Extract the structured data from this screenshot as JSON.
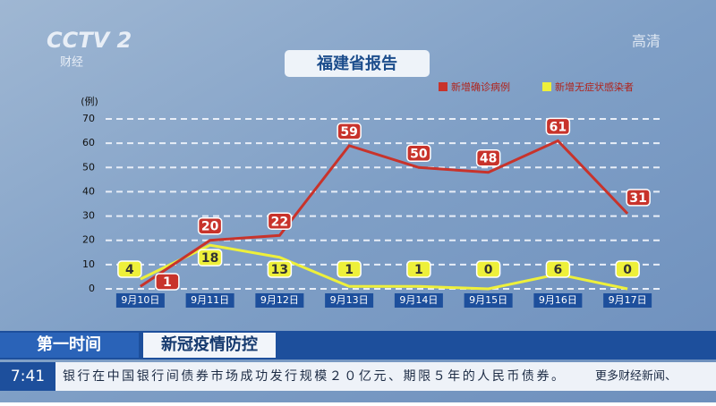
{
  "channel": {
    "logo": "CCTV 2",
    "name": "财经",
    "quality": "高清"
  },
  "chart_data": {
    "type": "line",
    "title": "福建省报告",
    "y_label": "(例)",
    "categories": [
      "9月10日",
      "9月11日",
      "9月12日",
      "9月13日",
      "9月14日",
      "9月15日",
      "9月16日",
      "9月17日"
    ],
    "series": [
      {
        "name": "新增确诊病例",
        "color": "#c8332b",
        "values": [
          1,
          20,
          22,
          59,
          50,
          48,
          61,
          31
        ]
      },
      {
        "name": "新增无症状感染者",
        "color": "#eef03a",
        "values": [
          4,
          18,
          13,
          1,
          1,
          0,
          6,
          0
        ]
      }
    ],
    "ylim": [
      0,
      70
    ],
    "yticks": [
      0,
      10,
      20,
      30,
      40,
      50,
      60,
      70
    ],
    "grid": true
  },
  "banner": {
    "program": "第一时间",
    "topic": "新冠疫情防控",
    "time": "7:41",
    "ticker": "银行在中国银行间债券市场成功发行规模２０亿元、期限５年的人民币债券。",
    "more": "更多财经新闻、"
  }
}
